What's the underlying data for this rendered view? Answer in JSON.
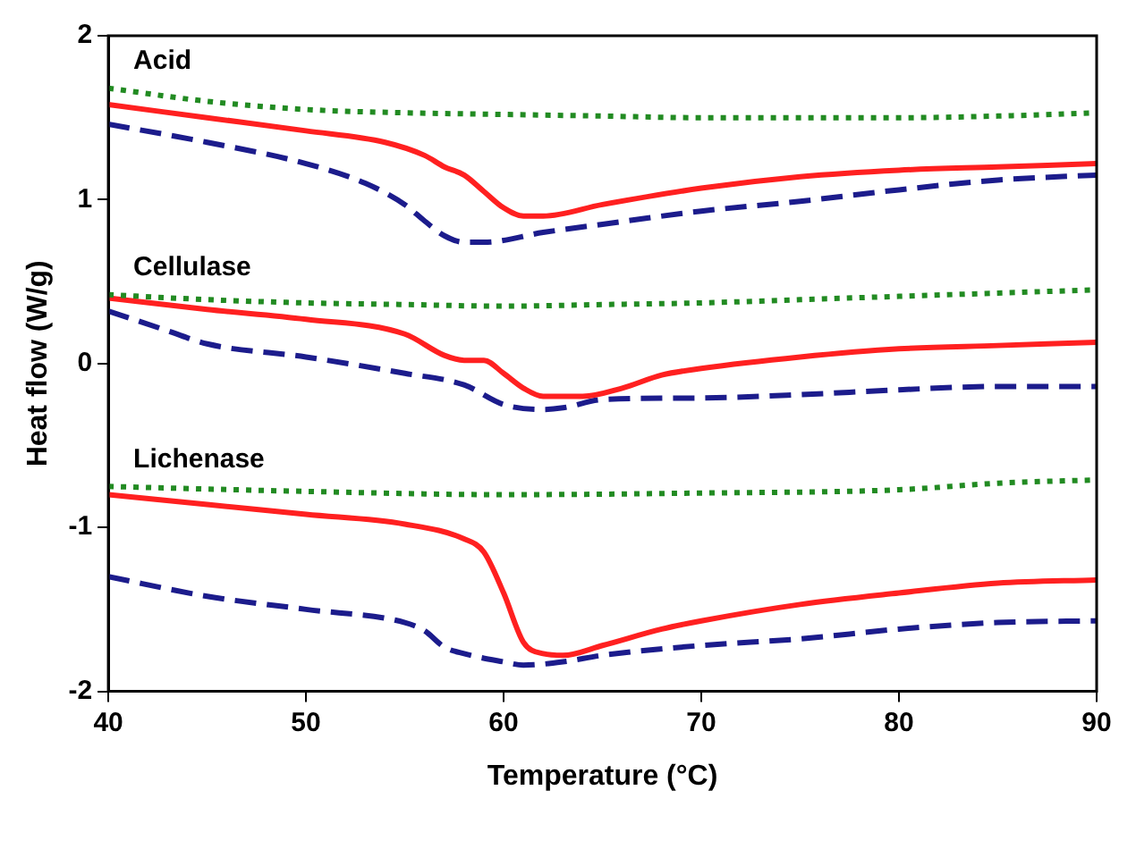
{
  "chart_data": {
    "type": "line",
    "xlabel": "Temperature (°C)",
    "ylabel": "Heat flow (W/g)",
    "xlim": [
      40,
      90
    ],
    "ylim": [
      -2,
      2
    ],
    "xticks": [
      40,
      50,
      60,
      70,
      80,
      90
    ],
    "yticks": [
      -2,
      -1,
      0,
      1,
      2
    ],
    "grid": false,
    "legend": false,
    "marker": "none",
    "annotations": [
      "Acid",
      "Cellulase",
      "Lichenase"
    ],
    "series": [
      {
        "color": "#228b22",
        "line_style": "dotted",
        "x": [
          40,
          45,
          50,
          55,
          60,
          65,
          70,
          75,
          80,
          85,
          90
        ],
        "values": [
          1.68,
          1.6,
          1.55,
          1.53,
          1.52,
          1.51,
          1.5,
          1.5,
          1.5,
          1.51,
          1.53
        ]
      },
      {
        "color": "#ff2020",
        "line_style": "solid",
        "x": [
          40,
          45,
          50,
          54,
          56,
          57,
          58,
          59,
          60,
          61,
          62,
          65,
          70,
          75,
          80,
          85,
          90
        ],
        "values": [
          1.58,
          1.5,
          1.42,
          1.35,
          1.27,
          1.2,
          1.15,
          1.05,
          0.95,
          0.9,
          0.9,
          0.97,
          1.07,
          1.14,
          1.18,
          1.2,
          1.22
        ]
      },
      {
        "color": "#1c1c8c",
        "line_style": "dashed",
        "x": [
          40,
          45,
          50,
          53,
          55,
          56,
          57,
          58,
          59,
          62,
          65,
          70,
          75,
          80,
          85,
          90
        ],
        "values": [
          1.46,
          1.35,
          1.22,
          1.1,
          0.97,
          0.87,
          0.78,
          0.74,
          0.74,
          0.8,
          0.85,
          0.93,
          0.99,
          1.06,
          1.12,
          1.15
        ]
      },
      {
        "color": "#228b22",
        "line_style": "dotted",
        "x": [
          40,
          45,
          50,
          55,
          60,
          65,
          70,
          75,
          80,
          85,
          90
        ],
        "values": [
          0.42,
          0.39,
          0.37,
          0.36,
          0.35,
          0.36,
          0.37,
          0.39,
          0.41,
          0.43,
          0.45
        ]
      },
      {
        "color": "#ff2020",
        "line_style": "solid",
        "x": [
          40,
          45,
          50,
          55,
          57,
          58,
          59,
          60,
          61,
          62,
          64,
          66,
          68,
          70,
          75,
          80,
          85,
          90
        ],
        "values": [
          0.4,
          0.33,
          0.27,
          0.18,
          0.05,
          0.02,
          0.02,
          -0.06,
          -0.15,
          -0.2,
          -0.2,
          -0.15,
          -0.07,
          -0.03,
          0.04,
          0.09,
          0.11,
          0.13
        ]
      },
      {
        "color": "#1c1c8c",
        "line_style": "dashed",
        "x": [
          40,
          43,
          45,
          50,
          55,
          58,
          60,
          62,
          63,
          65,
          70,
          75,
          80,
          85,
          90
        ],
        "values": [
          0.32,
          0.2,
          0.12,
          0.04,
          -0.06,
          -0.13,
          -0.25,
          -0.28,
          -0.27,
          -0.22,
          -0.21,
          -0.19,
          -0.16,
          -0.14,
          -0.14
        ]
      },
      {
        "color": "#228b22",
        "line_style": "dotted",
        "x": [
          40,
          50,
          60,
          70,
          80,
          85,
          90
        ],
        "values": [
          -0.75,
          -0.78,
          -0.8,
          -0.79,
          -0.77,
          -0.73,
          -0.71
        ]
      },
      {
        "color": "#ff2020",
        "line_style": "solid",
        "x": [
          40,
          45,
          50,
          55,
          58,
          59,
          60,
          61,
          62,
          63,
          65,
          68,
          70,
          75,
          80,
          85,
          90
        ],
        "values": [
          -0.8,
          -0.86,
          -0.92,
          -0.98,
          -1.07,
          -1.15,
          -1.4,
          -1.7,
          -1.77,
          -1.78,
          -1.72,
          -1.62,
          -1.57,
          -1.47,
          -1.4,
          -1.34,
          -1.32
        ]
      },
      {
        "color": "#1c1c8c",
        "line_style": "dashed",
        "x": [
          40,
          45,
          50,
          55,
          56,
          57,
          58,
          60,
          61,
          63,
          65,
          70,
          75,
          80,
          85,
          90
        ],
        "values": [
          -1.3,
          -1.42,
          -1.5,
          -1.58,
          -1.63,
          -1.73,
          -1.77,
          -1.82,
          -1.84,
          -1.82,
          -1.78,
          -1.72,
          -1.68,
          -1.62,
          -1.58,
          -1.57
        ]
      }
    ]
  }
}
